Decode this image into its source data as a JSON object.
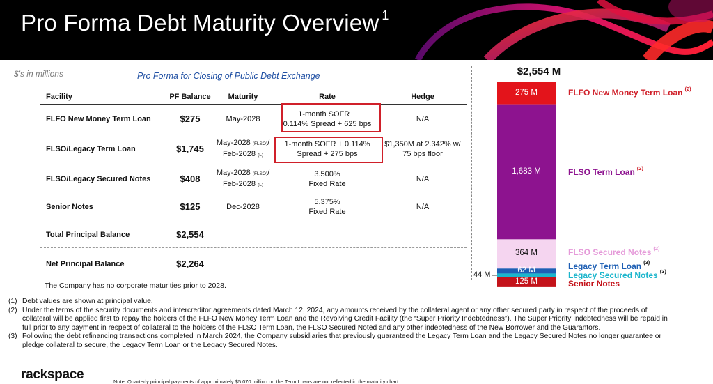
{
  "header": {
    "title": "Pro Forma Debt Maturity Overview",
    "footnote_mark": "1"
  },
  "units_label": "$'s in millions",
  "subtitle": "Pro Forma for Closing of Public Debt Exchange",
  "table": {
    "headers": [
      "Facility",
      "PF Balance",
      "Maturity",
      "Rate",
      "Hedge"
    ],
    "rows": [
      {
        "facility": "FLFO New Money Term Loan",
        "balance": "$275",
        "maturity_1": "May-2028",
        "maturity_1_tag": "",
        "maturity_2": "",
        "maturity_2_tag": "",
        "rate_1": "1-month SOFR +",
        "rate_2": "0.114% Spread + 625 bps",
        "hedge_1": "N/A",
        "hedge_2": ""
      },
      {
        "facility": "FLSO/Legacy Term Loan",
        "balance": "$1,745",
        "maturity_1": "May-2028",
        "maturity_1_tag": "(FLSO)",
        "maturity_2": "Feb-2028",
        "maturity_2_tag": "(L)",
        "rate_1": "1-month SOFR + 0.114%",
        "rate_2": "Spread + 275 bps",
        "hedge_1": "$1,350M at 2.342% w/",
        "hedge_2": "75 bps floor"
      },
      {
        "facility": "FLSO/Legacy Secured Notes",
        "balance": "$408",
        "maturity_1": "May-2028",
        "maturity_1_tag": "(FLSO)",
        "maturity_2": "Feb-2028",
        "maturity_2_tag": "(L)",
        "rate_1": "3.500%",
        "rate_2": "Fixed Rate",
        "hedge_1": "N/A",
        "hedge_2": ""
      },
      {
        "facility": "Senior Notes",
        "balance": "$125",
        "maturity_1": "Dec-2028",
        "maturity_1_tag": "",
        "maturity_2": "",
        "maturity_2_tag": "",
        "rate_1": "5.375%",
        "rate_2": "Fixed Rate",
        "hedge_1": "N/A",
        "hedge_2": ""
      },
      {
        "facility": "Total Principal Balance",
        "balance": "$2,554",
        "maturity_1": "",
        "maturity_1_tag": "",
        "maturity_2": "",
        "maturity_2_tag": "",
        "rate_1": "",
        "rate_2": "",
        "hedge_1": "",
        "hedge_2": ""
      },
      {
        "facility": "Net Principal Balance",
        "balance": "$2,264",
        "maturity_1": "",
        "maturity_1_tag": "",
        "maturity_2": "",
        "maturity_2_tag": "",
        "rate_1": "",
        "rate_2": "",
        "hedge_1": "",
        "hedge_2": ""
      }
    ]
  },
  "no_maturities_note": "The Company has no corporate maturities prior to 2028.",
  "chart_data": {
    "type": "bar",
    "stacked": true,
    "total_label": "$2,554 M",
    "total": 2554,
    "series": [
      {
        "name": "FLFO New Money Term Loan",
        "value": 275,
        "label": "275 M",
        "note": "(2)",
        "color": "#e3141b",
        "text_color": "#d0202a"
      },
      {
        "name": "FLSO Term Loan",
        "value": 1683,
        "label": "1,683 M",
        "note": "(2)",
        "color": "#8d138f",
        "text_color": "#8d138f"
      },
      {
        "name": "FLSO Secured Notes",
        "value": 364,
        "label": "364 M",
        "note": "(2)",
        "color": "#f5d5f0",
        "text_color": "#e59ad9"
      },
      {
        "name": "Legacy Term Loan",
        "value": 62,
        "label": "62 M",
        "note": "(3)",
        "color": "#1e5fb4",
        "text_color": "#1e5fb4"
      },
      {
        "name": "Legacy Secured Notes",
        "value": 44,
        "label": "44 M",
        "note": "(3)",
        "color": "#1bb5cc",
        "text_color": "#1bb5cc"
      },
      {
        "name": "Senior Notes",
        "value": 125,
        "label": "125 M",
        "note": "",
        "color": "#c4131a",
        "text_color": "#c4131a"
      }
    ]
  },
  "notes": [
    {
      "num": "(1)",
      "text": "Debt values are shown at principal value."
    },
    {
      "num": "(2)",
      "text": "Under the terms of the security documents and intercreditor agreements dated March 12, 2024, any amounts received by the collateral agent or any other secured party in respect of the proceeds of collateral will be applied first to repay the holders of the FLFO New Money Term Loan and the Revolving Credit Facility (the “Super Priority Indebtedness”). The Super Priority Indebtedness will be repaid in full prior to any payment in respect of collateral to the holders of the FLSO Term Loan, the FLSO Secured Noted and any other indebtedness of the New Borrower and the Guarantors."
    },
    {
      "num": "(3)",
      "text": "Following the debt refinancing transactions completed in March 2024, the Company subsidiaries that previously guaranteed the Legacy Term Loan and the Legacy Secured Notes no longer guarantee or pledge collateral to secure, the Legacy Term Loan or the Legacy Secured Notes."
    }
  ],
  "brand": "rackspace",
  "bottom_note": "Note: Quarterly principal payments of approximately $5.070 million on the Term Loans are not reflected in the maturity chart.",
  "colors": {
    "banner": "#000000",
    "subtitle": "#1f4fa3",
    "highlight_box": "#d0202a",
    "swirl_red": "#e0102a",
    "swirl_magenta": "#b0107e"
  }
}
